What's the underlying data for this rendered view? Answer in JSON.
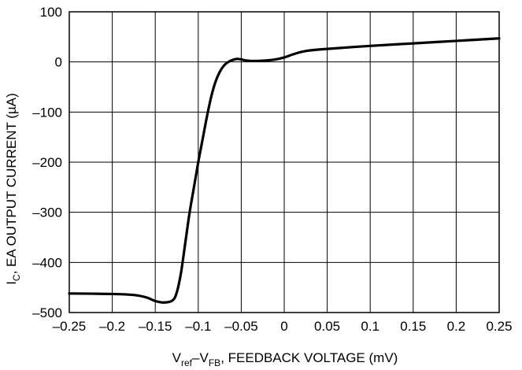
{
  "chart_data": {
    "type": "line",
    "title": "",
    "xlabel": {
      "v1": "V",
      "v1_sub": "ref",
      "dash": "–",
      "v2": "V",
      "v2_sub": "FB",
      "rest": ", FEEDBACK VOLTAGE (mV)"
    },
    "ylabel": {
      "i": "I",
      "i_sub": "C",
      "rest": ", EA OUTPUT CURRENT (",
      "mu": "µ",
      "unit": "A)"
    },
    "xlim": [
      -0.25,
      0.25
    ],
    "ylim": [
      -500,
      100
    ],
    "grid": true,
    "x_ticks": [
      -0.25,
      -0.2,
      -0.15,
      -0.1,
      -0.05,
      0,
      0.05,
      0.1,
      0.15,
      0.2,
      0.25
    ],
    "x_tick_labels": [
      "–0.25",
      "–0.2",
      "–0.15",
      "–0.1",
      "–0.05",
      "0",
      "0.05",
      "0.1",
      "0.15",
      "0.2",
      "0.25"
    ],
    "y_ticks": [
      100,
      0,
      -100,
      -200,
      -300,
      -400,
      -500
    ],
    "y_tick_labels": [
      "100",
      "0",
      "–100",
      "–200",
      "–300",
      "–400",
      "–500"
    ],
    "series": [
      {
        "x": [
          -0.25,
          -0.2,
          -0.175,
          -0.16,
          -0.15,
          -0.14,
          -0.13,
          -0.125,
          -0.12,
          -0.115,
          -0.11,
          -0.105,
          -0.1,
          -0.095,
          -0.09,
          -0.085,
          -0.08,
          -0.075,
          -0.07,
          -0.065,
          -0.06,
          -0.055,
          -0.05,
          -0.045,
          -0.04,
          -0.035,
          -0.03,
          -0.02,
          -0.01,
          0,
          0.01,
          0.02,
          0.03,
          0.05,
          0.1,
          0.15,
          0.2,
          0.25
        ],
        "y": [
          -462,
          -463,
          -465,
          -470,
          -477,
          -480,
          -476,
          -460,
          -420,
          -360,
          -300,
          -250,
          -200,
          -155,
          -110,
          -70,
          -40,
          -20,
          -7,
          0,
          4,
          6,
          5,
          3,
          2,
          2,
          2,
          3,
          5,
          9,
          15,
          20,
          23,
          26,
          32,
          37,
          42,
          47
        ]
      }
    ]
  }
}
